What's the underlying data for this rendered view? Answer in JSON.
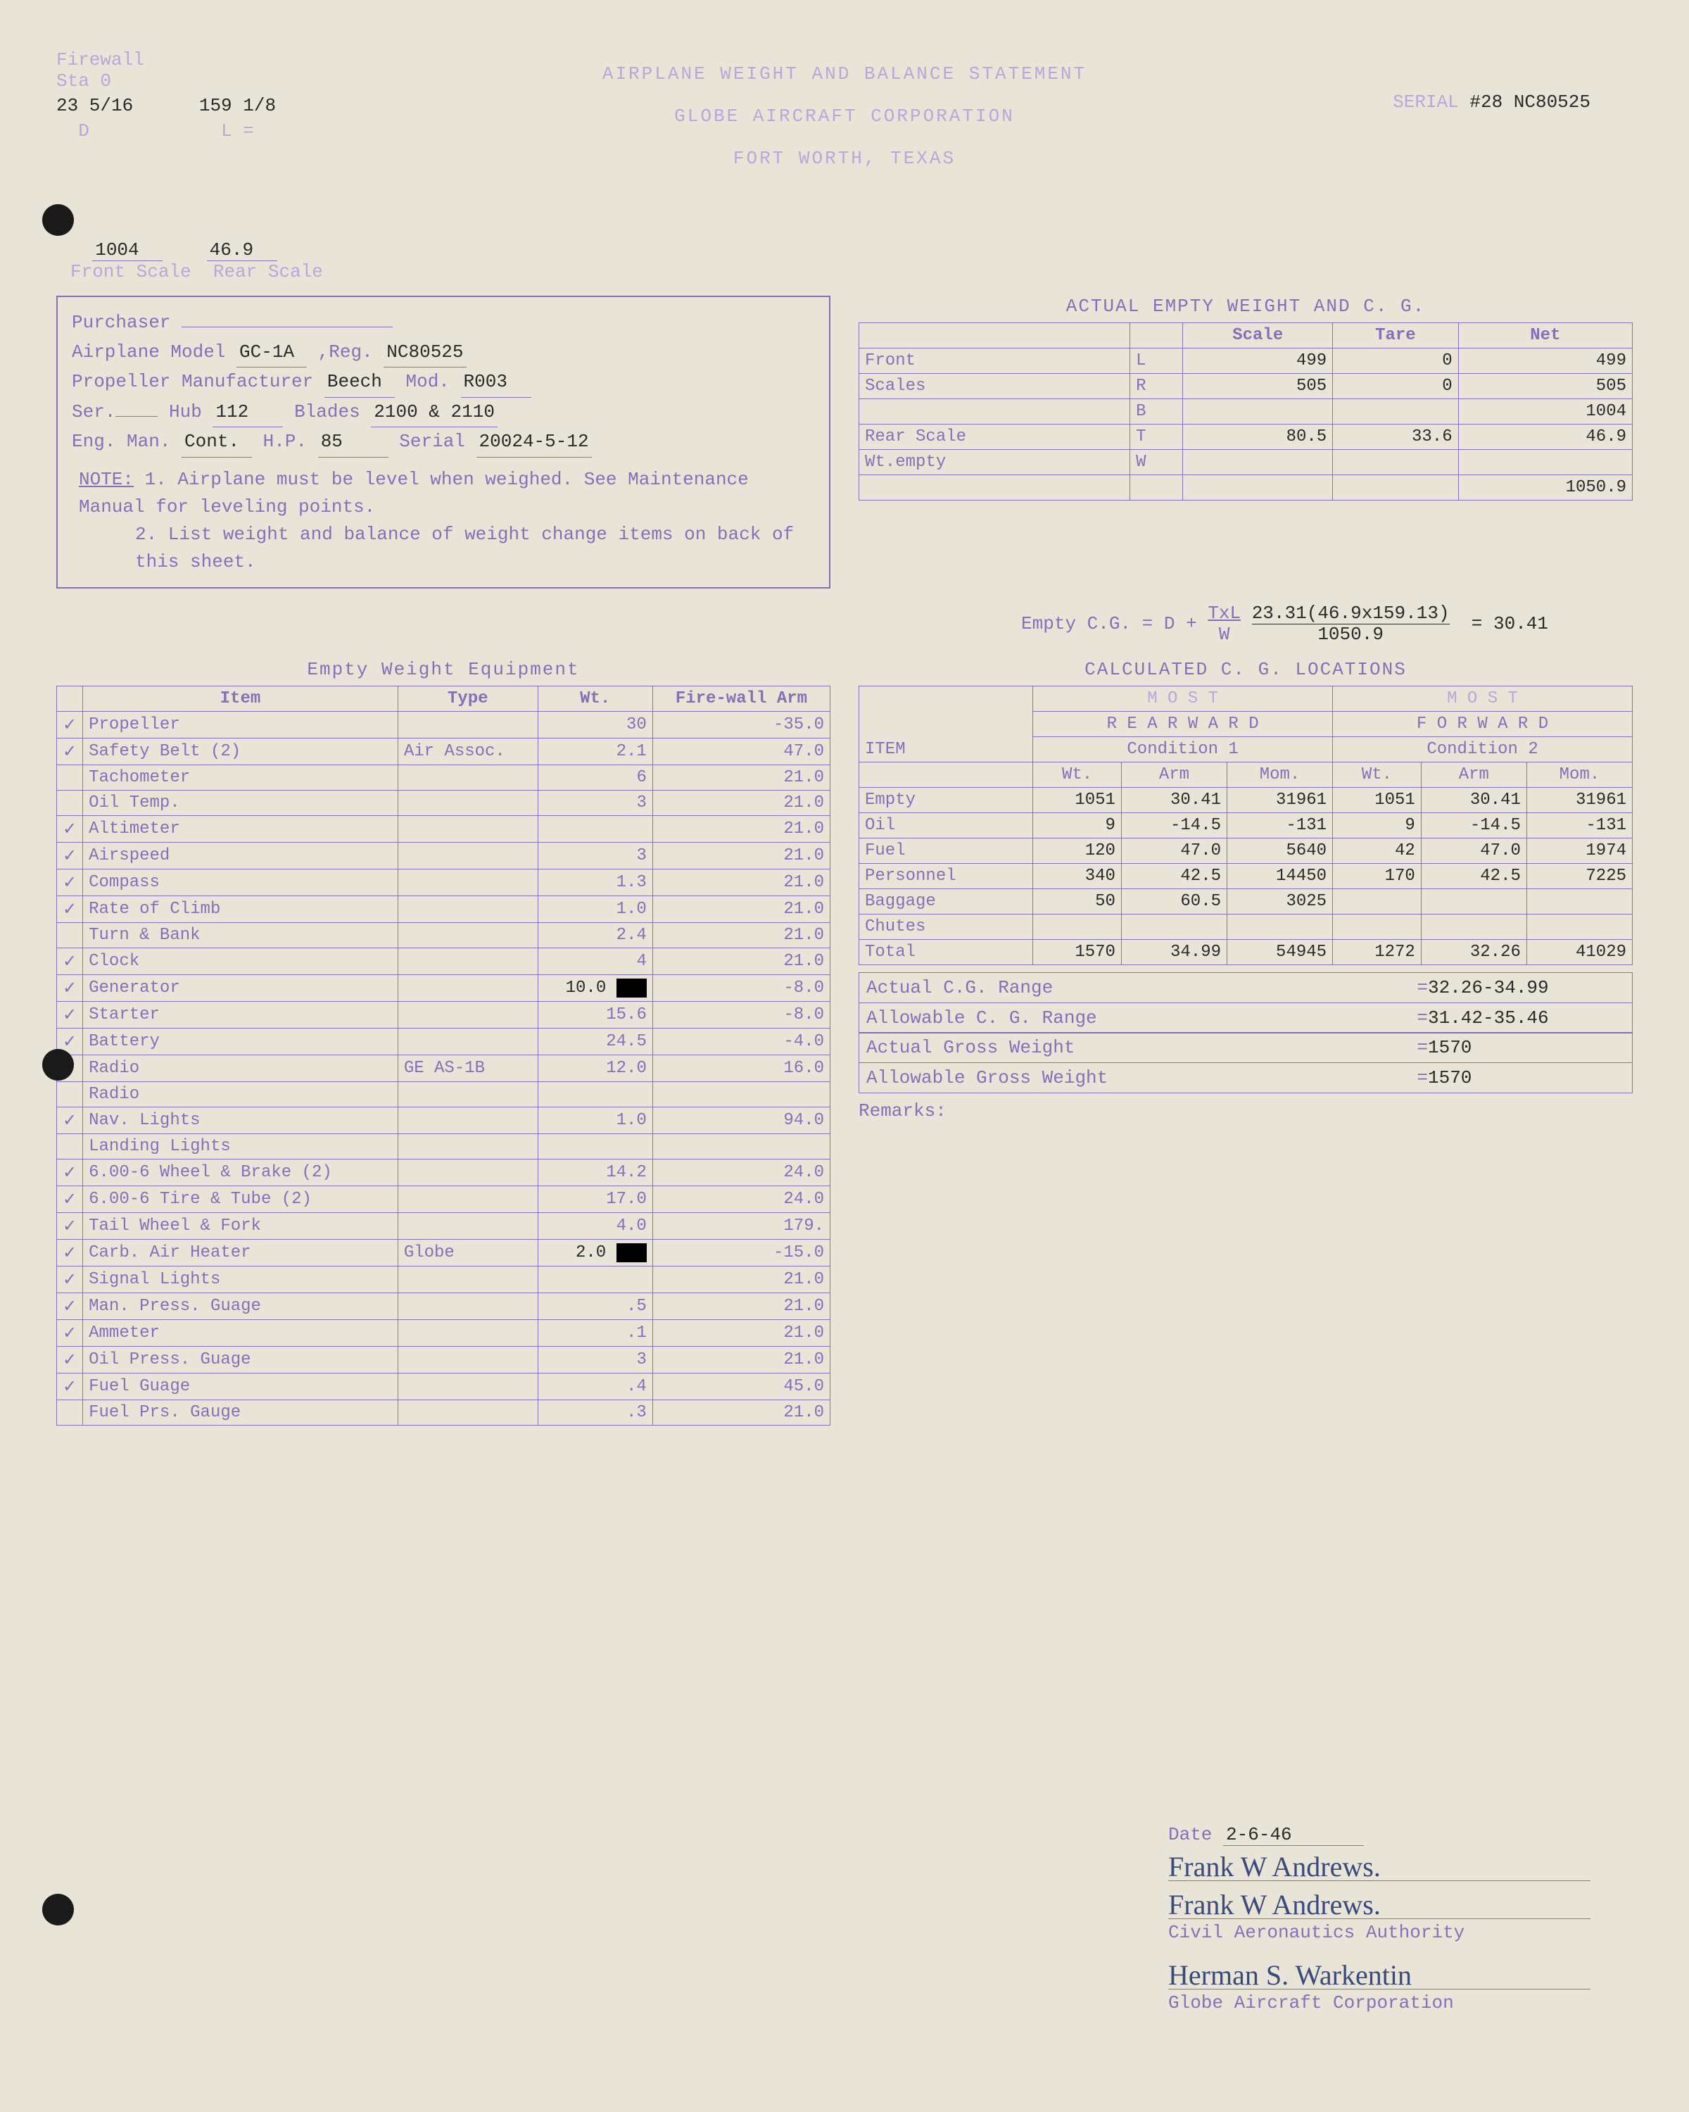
{
  "header": {
    "firewall_label": "Firewall",
    "sta_label": "Sta 0",
    "title1": "AIRPLANE WEIGHT AND BALANCE STATEMENT",
    "title2": "GLOBE AIRCRAFT CORPORATION",
    "title3": "FORT WORTH, TEXAS",
    "serial_label": "SERIAL",
    "serial_value": "#28 NC80525",
    "meas_d": "23 5/16",
    "meas_l": "159 1/8",
    "d_label": "D",
    "l_label": "L =",
    "front_scale_val": "1004",
    "rear_scale_val": "46.9",
    "front_scale_label": "Front Scale",
    "rear_scale_label": "Rear Scale"
  },
  "info": {
    "purchaser_label": "Purchaser",
    "purchaser_val": "",
    "airplane_model_label": "Airplane Model",
    "airplane_model_val": "GC-1A",
    "reg_label": "Reg.",
    "reg_val": "NC80525",
    "prop_mfr_label": "Propeller Manufacturer",
    "prop_mfr_val": "Beech",
    "mod_label": "Mod.",
    "mod_val": "R003",
    "ser_label": "Ser.",
    "ser_val": "",
    "hub_label": "Hub",
    "hub_val": "112",
    "blades_label": "Blades",
    "blades_val": "2100 & 2110",
    "eng_label": "Eng. Man.",
    "eng_val": "Cont.",
    "hp_label": "H.P.",
    "hp_val": "85",
    "eng_serial_label": "Serial",
    "eng_serial_val": "20024-5-12",
    "note_label": "NOTE:",
    "note1": "1. Airplane must be level when weighed. See Maintenance Manual for leveling points.",
    "note2": "2. List weight and balance of weight change items on back of this sheet."
  },
  "actual_empty": {
    "title": "ACTUAL EMPTY WEIGHT AND C. G.",
    "cols": [
      "",
      "",
      "Scale",
      "Tare",
      "Net"
    ],
    "rows": [
      [
        "Front",
        "L",
        "499",
        "0",
        "499"
      ],
      [
        "Scales",
        "R",
        "505",
        "0",
        "505"
      ],
      [
        "",
        "B",
        "",
        "",
        "1004"
      ],
      [
        "Rear Scale",
        "T",
        "80.5",
        "33.6",
        "46.9"
      ],
      [
        "Wt.empty",
        "W",
        "",
        "",
        ""
      ],
      [
        "",
        "",
        "",
        "",
        "1050.9"
      ]
    ]
  },
  "formula": {
    "prefix": "Empty C.G. = D + ",
    "num_label": "TxL",
    "den_label": "W",
    "calc": "23.31(46.9x159.13)",
    "den_val": "1050.9",
    "result": "= 30.41"
  },
  "equip": {
    "title": "Empty Weight Equipment",
    "cols": [
      "",
      "Item",
      "Type",
      "Wt.",
      "Fire-wall Arm"
    ],
    "rows": [
      [
        "✓",
        "Propeller",
        "",
        "30",
        "-35.0"
      ],
      [
        "✓",
        "Safety Belt (2)",
        "Air Assoc.",
        "2.1",
        "47.0"
      ],
      [
        "",
        "Tachometer",
        "",
        "6",
        "21.0"
      ],
      [
        "",
        "Oil Temp.",
        "",
        "3",
        "21.0"
      ],
      [
        "✓",
        "Altimeter",
        "",
        "",
        "21.0"
      ],
      [
        "✓",
        "Airspeed",
        "",
        "3",
        "21.0"
      ],
      [
        "✓",
        "Compass",
        "",
        "1.3",
        "21.0"
      ],
      [
        "✓",
        "Rate of Climb",
        "",
        "1.0",
        "21.0"
      ],
      [
        "",
        "Turn & Bank",
        "",
        "2.4",
        "21.0"
      ],
      [
        "✓",
        "Clock",
        "",
        "4",
        "21.0"
      ],
      [
        "✓",
        "Generator",
        "",
        "10.0 xxx",
        "-8.0"
      ],
      [
        "✓",
        "Starter",
        "",
        "15.6",
        "-8.0"
      ],
      [
        "✓",
        "Battery",
        "",
        "24.5",
        "-4.0"
      ],
      [
        "✓",
        "Radio",
        "GE AS-1B",
        "12.0",
        "16.0"
      ],
      [
        "",
        "Radio",
        "",
        "",
        ""
      ],
      [
        "✓",
        "Nav. Lights",
        "",
        "1.0",
        "94.0"
      ],
      [
        "",
        "Landing Lights",
        "",
        "",
        ""
      ],
      [
        "✓",
        "6.00-6 Wheel & Brake (2)",
        "",
        "14.2",
        "24.0"
      ],
      [
        "✓",
        "6.00-6 Tire & Tube (2)",
        "",
        "17.0",
        "24.0"
      ],
      [
        "✓",
        "Tail Wheel & Fork",
        "",
        "4.0",
        "179."
      ],
      [
        "✓",
        "Carb. Air Heater",
        "Globe",
        "2.0 xxx",
        "-15.0"
      ],
      [
        "✓",
        "Signal Lights",
        "",
        "",
        "21.0"
      ],
      [
        "✓",
        "Man. Press. Guage",
        "",
        ".5",
        "21.0"
      ],
      [
        "✓",
        "Ammeter",
        "",
        ".1",
        "21.0"
      ],
      [
        "✓",
        "Oil Press. Guage",
        "",
        "3",
        "21.0"
      ],
      [
        "✓",
        "Fuel Guage",
        "",
        ".4",
        "45.0"
      ],
      [
        "",
        "Fuel Prs. Gauge",
        "",
        ".3",
        "21.0"
      ]
    ]
  },
  "cg_calc": {
    "title": "CALCULATED C. G. LOCATIONS",
    "most_label": "M O S T",
    "rearward": "R E A R W A R D",
    "forward": "F O R W A R D",
    "item_label": "ITEM",
    "cond1": "Condition 1",
    "cond2": "Condition 2",
    "subcols": [
      "Wt.",
      "Arm",
      "Mom."
    ],
    "rows": [
      [
        "Empty",
        "1051",
        "30.41",
        "31961",
        "1051",
        "30.41",
        "31961"
      ],
      [
        "Oil",
        "9",
        "-14.5",
        "-131",
        "9",
        "-14.5",
        "-131"
      ],
      [
        "Fuel",
        "120",
        "47.0",
        "5640",
        "42",
        "47.0",
        "1974"
      ],
      [
        "Personnel",
        "340",
        "42.5",
        "14450",
        "170",
        "42.5",
        "7225"
      ],
      [
        "Baggage",
        "50",
        "60.5",
        "3025",
        "",
        "",
        ""
      ],
      [
        "Chutes",
        "",
        "",
        "",
        "",
        "",
        ""
      ],
      [
        "Total",
        "1570",
        "34.99",
        "54945",
        "1272",
        "32.26",
        "41029"
      ]
    ]
  },
  "summary": {
    "rows": [
      [
        "Actual C.G. Range",
        "=",
        "32.26-34.99"
      ],
      [
        "Allowable C. G. Range",
        "=",
        "31.42-35.46"
      ],
      [
        "Actual Gross Weight",
        "=",
        "1570"
      ],
      [
        "Allowable Gross Weight",
        "=",
        "1570"
      ]
    ],
    "remarks_label": "Remarks:"
  },
  "signatures": {
    "date_label": "Date",
    "date_val": "2-6-46",
    "sig1": "Frank W Andrews.",
    "sig2": "Frank W Andrews.",
    "auth1": "Civil Aeronautics Authority",
    "sig3": "Herman S. Warkentin",
    "auth2": "Globe Aircraft Corporation"
  }
}
